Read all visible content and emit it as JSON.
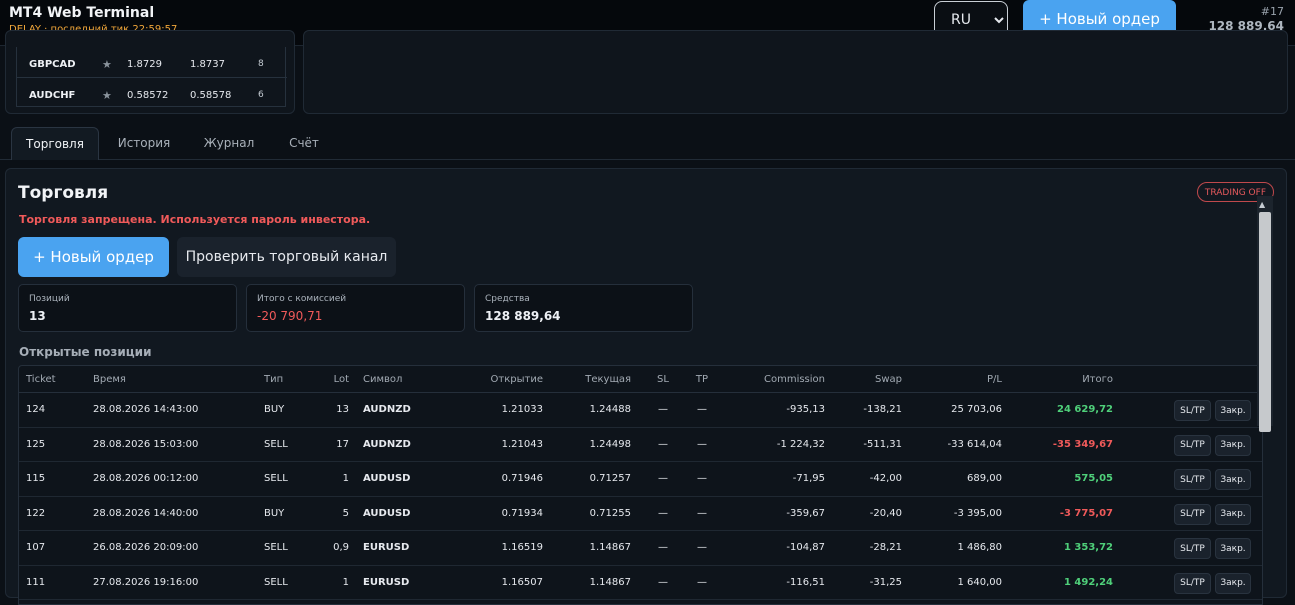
{
  "header": {
    "app_title": "MT4 Web Terminal",
    "status": "DELAY · последний тик 22:59:57",
    "language": "RU",
    "new_order_label": "+ Новый ордер",
    "account_id": "#17",
    "account_balance": "128 889,64"
  },
  "quotes": [
    {
      "symbol": "GBPCAD",
      "bid": "1.8729",
      "ask": "1.8737",
      "spread": "8"
    },
    {
      "symbol": "AUDCHF",
      "bid": "0.58572",
      "ask": "0.58578",
      "spread": "6"
    }
  ],
  "tabs": [
    {
      "label": "Торговля",
      "active": true
    },
    {
      "label": "История",
      "active": false
    },
    {
      "label": "Журнал",
      "active": false
    },
    {
      "label": "Счёт",
      "active": false
    }
  ],
  "trading": {
    "title": "Торговля",
    "badge": "TRADING OFF",
    "warning": "Торговля запрещена. Используется пароль инвестора.",
    "new_order_label": "+ Новый ордер",
    "check_channel_label": "Проверить торговый канал",
    "stats": [
      {
        "label": "Позиций",
        "value": "13",
        "negative": false
      },
      {
        "label": "Итого с комиссией",
        "value": "-20 790,71",
        "negative": true
      },
      {
        "label": "Средства",
        "value": "128 889,64",
        "negative": false
      }
    ],
    "open_positions_heading": "Открытые позиции"
  },
  "table": {
    "columns": [
      "Ticket",
      "Время",
      "Тип",
      "Lot",
      "Символ",
      "Открытие",
      "Текущая",
      "SL",
      "TP",
      "Commission",
      "Swap",
      "P/L",
      "Итого"
    ],
    "sltp_label": "SL/TP",
    "close_label": "Закр.",
    "rows": [
      {
        "ticket": "124",
        "time": "28.08.2026 14:43:00",
        "type": "BUY",
        "lot": "13",
        "symbol": "AUDNZD",
        "open": "1.21033",
        "current": "1.24488",
        "sl": "—",
        "tp": "—",
        "commission": "-935,13",
        "swap": "-138,21",
        "pl": "25 703,06",
        "total": "24 629,72",
        "positive": true
      },
      {
        "ticket": "125",
        "time": "28.08.2026 15:03:00",
        "type": "SELL",
        "lot": "17",
        "symbol": "AUDNZD",
        "open": "1.21043",
        "current": "1.24498",
        "sl": "—",
        "tp": "—",
        "commission": "-1 224,32",
        "swap": "-511,31",
        "pl": "-33 614,04",
        "total": "-35 349,67",
        "positive": false
      },
      {
        "ticket": "115",
        "time": "28.08.2026 00:12:00",
        "type": "SELL",
        "lot": "1",
        "symbol": "AUDUSD",
        "open": "0.71946",
        "current": "0.71257",
        "sl": "—",
        "tp": "—",
        "commission": "-71,95",
        "swap": "-42,00",
        "pl": "689,00",
        "total": "575,05",
        "positive": true
      },
      {
        "ticket": "122",
        "time": "28.08.2026 14:40:00",
        "type": "BUY",
        "lot": "5",
        "symbol": "AUDUSD",
        "open": "0.71934",
        "current": "0.71255",
        "sl": "—",
        "tp": "—",
        "commission": "-359,67",
        "swap": "-20,40",
        "pl": "-3 395,00",
        "total": "-3 775,07",
        "positive": false
      },
      {
        "ticket": "107",
        "time": "26.08.2026 20:09:00",
        "type": "SELL",
        "lot": "0,9",
        "symbol": "EURUSD",
        "open": "1.16519",
        "current": "1.14867",
        "sl": "—",
        "tp": "—",
        "commission": "-104,87",
        "swap": "-28,21",
        "pl": "1 486,80",
        "total": "1 353,72",
        "positive": true
      },
      {
        "ticket": "111",
        "time": "27.08.2026 19:16:00",
        "type": "SELL",
        "lot": "1",
        "symbol": "EURUSD",
        "open": "1.16507",
        "current": "1.14867",
        "sl": "—",
        "tp": "—",
        "commission": "-116,51",
        "swap": "-31,25",
        "pl": "1 640,00",
        "total": "1 492,24",
        "positive": true
      }
    ]
  }
}
